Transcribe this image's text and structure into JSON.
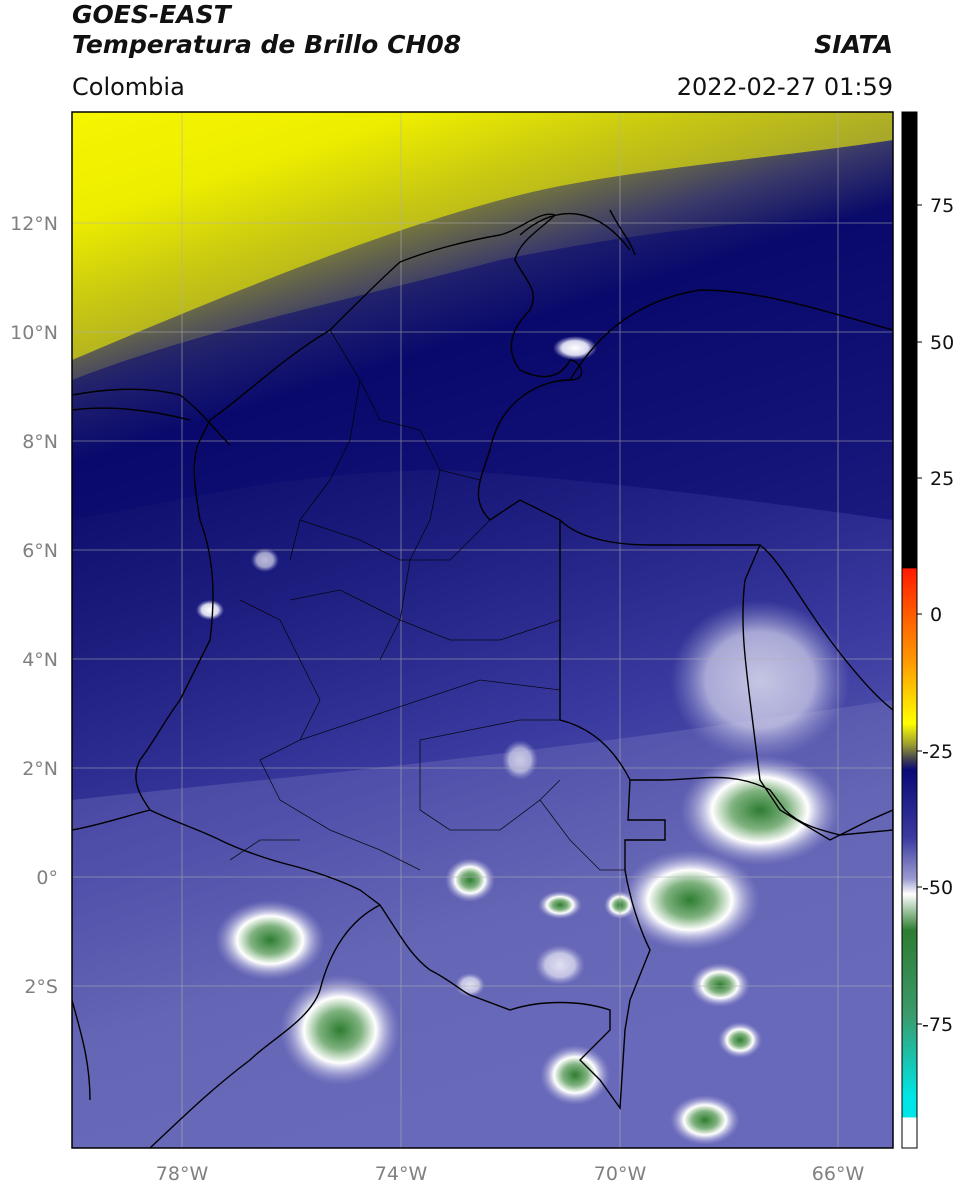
{
  "header": {
    "satellite": "GOES-EAST",
    "product": "Temperatura de Brillo CH08",
    "region": "Colombia",
    "organization": "SIATA",
    "datetime": "2022-02-27 01:59"
  },
  "axes": {
    "lon_ticks": [
      "78°W",
      "74°W",
      "70°W",
      "66°W"
    ],
    "lat_ticks": [
      "12°N",
      "10°N",
      "8°N",
      "6°N",
      "4°N",
      "2°N",
      "0°",
      "2°S"
    ]
  },
  "colorbar": {
    "ticks": [
      "75",
      "50",
      "25",
      "0",
      "-25",
      "-50",
      "-75"
    ],
    "colors": {
      "black": "#000000",
      "red": "#ff2200",
      "orange": "#ff9900",
      "yellow": "#ffff00",
      "olive": "#55552a",
      "navy": "#0a0a78",
      "blue": "#3a3aa0",
      "lavender": "#9a9ad0",
      "white": "#ffffff",
      "green": "#2e7d32",
      "cyan": "#00e5e5"
    }
  }
}
